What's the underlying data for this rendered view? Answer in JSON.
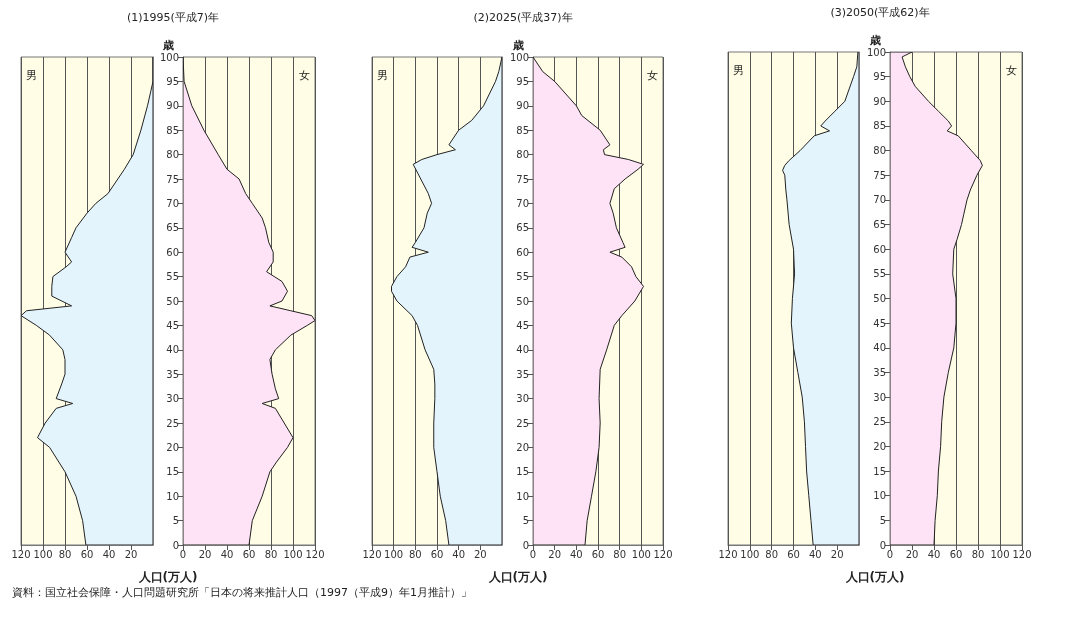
{
  "chart_data": [
    {
      "type": "area",
      "orientation": "horizontal",
      "annotations": [
        "男",
        "資料：国立社会保障・人口問題研究所「日本の将来推計人口（1997（平成9）年1月推計）」"
      ],
      "tick_labels": "x",
      "grid": "x",
      "color": "#e3f4fd",
      "x": [
        0,
        5,
        10,
        15,
        20,
        22,
        25,
        28,
        29,
        30,
        33,
        35,
        38,
        40,
        43,
        45,
        47,
        48,
        49,
        51,
        53,
        55,
        57,
        58,
        60,
        63,
        65,
        68,
        70,
        72,
        75,
        77,
        80,
        85,
        90,
        93,
        95,
        100
      ],
      "values": [
        61,
        64,
        70,
        80,
        94,
        105,
        98,
        88,
        73,
        88,
        83,
        80,
        80,
        82,
        94,
        106,
        120,
        115,
        74,
        92,
        92,
        91,
        79,
        74,
        80,
        74,
        70,
        60,
        52,
        41,
        32,
        26,
        18,
        11,
        5,
        2,
        0,
        0
      ],
      "xlim": [
        120,
        0
      ],
      "xticks": [
        120,
        100,
        80,
        60,
        40,
        20
      ],
      "ylim": [
        0,
        100
      ],
      "yticks": [
        0,
        5,
        10,
        15,
        20,
        25,
        30,
        35,
        40,
        45,
        50,
        55,
        60,
        65,
        70,
        75,
        80,
        85,
        90,
        95,
        100
      ]
    },
    {
      "type": "area",
      "orientation": "horizontal",
      "title": "(1)1995(平成7)年",
      "ylabel": "歳",
      "xlabel": "人口(万人)",
      "annotations": [
        "女"
      ],
      "grid": "x",
      "color": "#fde3f5",
      "x": [
        0,
        5,
        10,
        15,
        17,
        20,
        22,
        25,
        28,
        29,
        30,
        32,
        35,
        38,
        40,
        43,
        45,
        46,
        47,
        48,
        49,
        50,
        52,
        54,
        56,
        58,
        60,
        62,
        65,
        67,
        70,
        72,
        75,
        77,
        80,
        85,
        90,
        95,
        100
      ],
      "values": [
        60,
        63,
        72,
        79,
        85,
        95,
        100,
        92,
        84,
        72,
        87,
        84,
        81,
        79,
        84,
        98,
        113,
        120,
        117,
        98,
        79,
        90,
        95,
        90,
        76,
        82,
        82,
        78,
        75,
        72,
        63,
        57,
        51,
        40,
        32,
        19,
        8,
        1,
        0
      ],
      "xlim": [
        0,
        120
      ],
      "xticks": [
        0,
        20,
        40,
        60,
        80,
        100,
        120
      ],
      "ylim": [
        0,
        100
      ],
      "yticks": [
        0,
        5,
        10,
        15,
        20,
        25,
        30,
        35,
        40,
        45,
        50,
        55,
        60,
        65,
        70,
        75,
        80,
        85,
        90,
        95,
        100
      ]
    },
    {
      "type": "area",
      "orientation": "horizontal",
      "annotations": [
        "男"
      ],
      "tick_labels": "x",
      "grid": "x",
      "color": "#e3f4fd",
      "x": [
        0,
        5,
        10,
        15,
        20,
        25,
        30,
        33,
        36,
        40,
        45,
        47,
        50,
        52,
        53,
        55,
        57,
        59,
        60,
        61,
        62,
        65,
        68,
        70,
        72,
        75,
        78,
        79,
        80,
        81,
        82,
        83,
        85,
        87,
        90,
        95,
        97,
        100
      ],
      "values": [
        49,
        52,
        57,
        60,
        63,
        63,
        62,
        62,
        63,
        71,
        78,
        83,
        97,
        102,
        102,
        97,
        89,
        85,
        68,
        83,
        80,
        72,
        69,
        65,
        68,
        75,
        82,
        74,
        60,
        43,
        49,
        46,
        40,
        28,
        17,
        6,
        3,
        0
      ],
      "xlim": [
        120,
        0
      ],
      "xticks": [
        120,
        100,
        80,
        60,
        40,
        20
      ],
      "ylim": [
        0,
        100
      ],
      "yticks": [
        0,
        5,
        10,
        15,
        20,
        25,
        30,
        35,
        40,
        45,
        50,
        55,
        60,
        65,
        70,
        75,
        80,
        85,
        90,
        95,
        100
      ]
    },
    {
      "type": "area",
      "orientation": "horizontal",
      "title": "(2)2025(平成37)年",
      "ylabel": "歳",
      "xlabel": "人口(万人)",
      "annotations": [
        "女"
      ],
      "grid": "x",
      "color": "#fde3f5",
      "x": [
        0,
        5,
        10,
        15,
        20,
        25,
        30,
        36,
        40,
        45,
        47,
        50,
        53,
        55,
        57,
        59,
        60,
        61,
        62,
        65,
        68,
        70,
        73,
        75,
        77,
        78,
        79,
        80,
        81,
        82,
        83,
        85,
        88,
        90,
        92,
        95,
        97,
        100
      ],
      "values": [
        48,
        50,
        54,
        58,
        61,
        62,
        61,
        62,
        68,
        75,
        82,
        94,
        102,
        95,
        91,
        82,
        71,
        85,
        83,
        77,
        74,
        71,
        75,
        85,
        97,
        102,
        88,
        66,
        65,
        71,
        68,
        62,
        45,
        40,
        32,
        20,
        9,
        0
      ],
      "xlim": [
        0,
        120
      ],
      "xticks": [
        0,
        20,
        40,
        60,
        80,
        100,
        120
      ],
      "ylim": [
        0,
        100
      ],
      "yticks": [
        0,
        5,
        10,
        15,
        20,
        25,
        30,
        35,
        40,
        45,
        50,
        55,
        60,
        65,
        70,
        75,
        80,
        85,
        90,
        95,
        100
      ]
    },
    {
      "type": "area",
      "orientation": "horizontal",
      "annotations": [
        "男"
      ],
      "tick_labels": "x",
      "grid": "x",
      "color": "#e3f4fd",
      "x": [
        0,
        5,
        10,
        15,
        20,
        25,
        30,
        35,
        40,
        45,
        50,
        55,
        60,
        65,
        70,
        72,
        75,
        76,
        77,
        78,
        80,
        83,
        84,
        85,
        86,
        88,
        90,
        95,
        97,
        100
      ],
      "values": [
        42,
        44,
        46,
        48,
        49,
        50,
        52,
        56,
        60,
        62,
        61,
        59,
        60,
        64,
        66,
        67,
        68,
        70,
        68,
        64,
        54,
        41,
        27,
        35,
        31,
        22,
        13,
        5,
        2,
        1
      ],
      "xlim": [
        120,
        0
      ],
      "xticks": [
        120,
        100,
        80,
        60,
        40,
        20
      ],
      "ylim": [
        0,
        100
      ],
      "yticks": [
        0,
        5,
        10,
        15,
        20,
        25,
        30,
        35,
        40,
        45,
        50,
        55,
        60,
        65,
        70,
        75,
        80,
        85,
        90,
        95,
        100
      ]
    },
    {
      "type": "area",
      "orientation": "horizontal",
      "title": "(3)2050(平成62)年",
      "ylabel": "歳",
      "xlabel": "人口(万人)",
      "annotations": [
        "女"
      ],
      "grid": "x",
      "color": "#fde3f5",
      "x": [
        0,
        5,
        10,
        15,
        20,
        25,
        30,
        35,
        40,
        45,
        50,
        55,
        60,
        62,
        65,
        67,
        70,
        72,
        75,
        77,
        78,
        80,
        83,
        84,
        85,
        86,
        88,
        90,
        93,
        95,
        97,
        99,
        100
      ],
      "values": [
        40,
        41,
        43,
        44,
        46,
        47,
        49,
        53,
        58,
        60,
        60,
        57,
        58,
        61,
        65,
        67,
        70,
        73,
        79,
        84,
        82,
        74,
        62,
        52,
        56,
        53,
        44,
        35,
        23,
        18,
        14,
        11,
        20
      ],
      "xlim": [
        0,
        120
      ],
      "xticks": [
        0,
        20,
        40,
        60,
        80,
        100,
        120
      ],
      "ylim": [
        0,
        100
      ],
      "yticks": [
        0,
        5,
        10,
        15,
        20,
        25,
        30,
        35,
        40,
        45,
        50,
        55,
        60,
        65,
        70,
        75,
        80,
        85,
        90,
        95,
        100
      ]
    }
  ]
}
